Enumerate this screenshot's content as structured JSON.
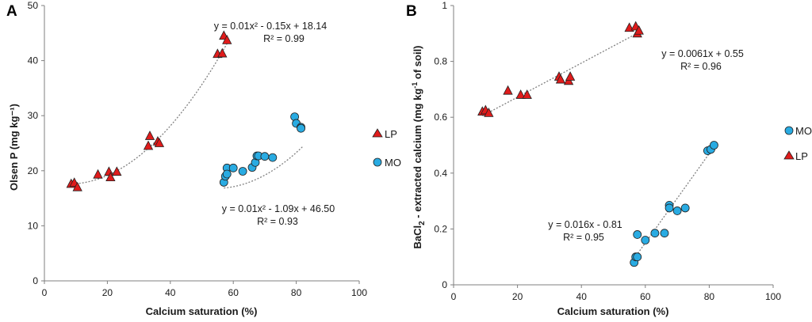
{
  "colors": {
    "LP": "#e01b1b",
    "MO": "#29abe2",
    "axis": "#7f7f7f",
    "trend": "#808080"
  },
  "chart_data": [
    {
      "type": "scatter",
      "panel": "A",
      "xlabel": "Calcium saturation (%)",
      "ylabel": "Olsen P (mg kg⁻¹)",
      "xlim": [
        0,
        100
      ],
      "ylim": [
        0,
        50
      ],
      "xticks": [
        0,
        20,
        40,
        60,
        80,
        100
      ],
      "yticks": [
        0,
        10,
        20,
        30,
        40,
        50
      ],
      "legend_position": "right",
      "series": [
        {
          "name": "LP",
          "marker": "triangle",
          "x": [
            8.5,
            9.5,
            10.5,
            17,
            20.5,
            21,
            23,
            33,
            33.5,
            36,
            36.5,
            55,
            56.5,
            57,
            58
          ],
          "y": [
            17.6,
            17.8,
            17.0,
            19.3,
            19.8,
            18.8,
            19.8,
            24.5,
            26.3,
            25.3,
            25.0,
            41.2,
            41.3,
            44.5,
            43.7
          ],
          "trend": {
            "kind": "poly2",
            "coef": [
              0.01,
              -0.15,
              18.14
            ],
            "x_range": [
              9,
              58
            ],
            "label": "y = 0.01x² - 0.15x + 18.14",
            "r2": "R² = 0.99"
          }
        },
        {
          "name": "MO",
          "marker": "circle",
          "x": [
            57,
            57.5,
            58,
            58,
            60,
            63,
            66,
            67,
            67.5,
            68,
            70,
            72.5,
            79.5,
            80,
            81.5,
            81.5
          ],
          "y": [
            17.9,
            19.0,
            20.5,
            19.4,
            20.5,
            19.9,
            20.6,
            21.5,
            22.7,
            22.7,
            22.6,
            22.4,
            29.8,
            28.6,
            27.9,
            27.7
          ],
          "trend": {
            "kind": "poly2",
            "coef": [
              0.01,
              -1.09,
              46.5
            ],
            "x_range": [
              57,
              82
            ],
            "label": "y = 0.01x² - 1.09x + 46.50",
            "r2": "R² = 0.93"
          }
        }
      ]
    },
    {
      "type": "scatter",
      "panel": "B",
      "xlabel": "Calcium saturation (%)",
      "ylabel_main": "BaCl",
      "ylabel_sub": "2",
      "ylabel_rest": " - extracted calcium (mg kg",
      "ylabel_sup": "-1",
      "ylabel_end": " of soil)",
      "xlim": [
        0,
        100
      ],
      "ylim": [
        0,
        1
      ],
      "xticks": [
        0,
        20,
        40,
        60,
        80,
        100
      ],
      "yticks": [
        0,
        0.2,
        0.4,
        0.6,
        0.8,
        1
      ],
      "legend_position": "right",
      "series": [
        {
          "name": "MO",
          "marker": "circle",
          "x": [
            56.5,
            57,
            57.5,
            57.5,
            60,
            63,
            66,
            67.5,
            67.5,
            70,
            72.5,
            79.5,
            80.5,
            81.5
          ],
          "y": [
            0.08,
            0.1,
            0.1,
            0.18,
            0.16,
            0.185,
            0.185,
            0.285,
            0.275,
            0.265,
            0.275,
            0.48,
            0.485,
            0.5
          ],
          "trend": {
            "kind": "linear",
            "coef": [
              0.016,
              -0.81
            ],
            "x_range": [
              56.5,
              82
            ],
            "label": "y = 0.016x - 0.81",
            "r2": "R² = 0.95"
          }
        },
        {
          "name": "LP",
          "marker": "triangle",
          "x": [
            9,
            10,
            11,
            17,
            21,
            23,
            33,
            33.5,
            36,
            36.5,
            55,
            57,
            57.5,
            58
          ],
          "y": [
            0.62,
            0.625,
            0.615,
            0.695,
            0.68,
            0.68,
            0.745,
            0.735,
            0.73,
            0.745,
            0.92,
            0.925,
            0.9,
            0.91
          ],
          "trend": {
            "kind": "linear",
            "coef": [
              0.0061,
              0.55
            ],
            "x_range": [
              9,
              58
            ],
            "label": "y = 0.0061x + 0.55",
            "r2": "R² = 0.96"
          }
        }
      ]
    }
  ]
}
